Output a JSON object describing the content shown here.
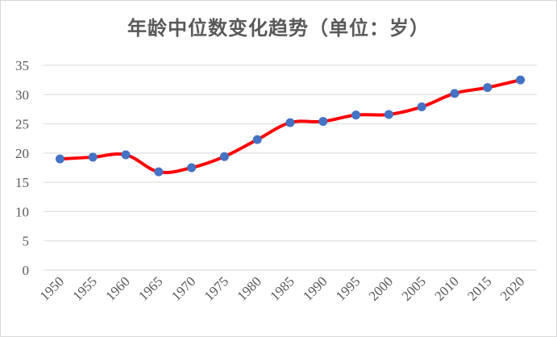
{
  "chart_data": {
    "type": "line",
    "title": "年龄中位数变化趋势（单位：岁）",
    "xlabel": "",
    "ylabel": "",
    "x": [
      "1950",
      "1955",
      "1960",
      "1965",
      "1970",
      "1975",
      "1980",
      "1985",
      "1990",
      "1995",
      "2000",
      "2005",
      "2010",
      "2015",
      "2020"
    ],
    "series": [
      {
        "values": [
          19.0,
          19.3,
          19.7,
          16.8,
          17.5,
          19.4,
          22.3,
          25.2,
          25.4,
          26.5,
          26.6,
          27.9,
          30.2,
          31.2,
          32.5
        ],
        "line_color": "#ff0000",
        "marker_color": "#4472c4"
      }
    ],
    "ylim": [
      0,
      35
    ],
    "yticks": [
      "0",
      "5",
      "10",
      "15",
      "20",
      "25",
      "30",
      "35"
    ],
    "grid": true,
    "smooth": true,
    "legend": "none"
  }
}
